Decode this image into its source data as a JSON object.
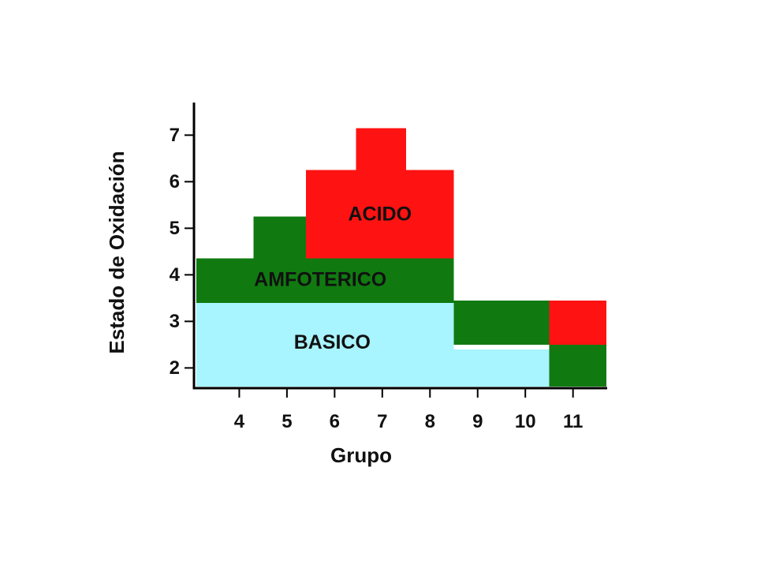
{
  "chart_data": {
    "type": "area",
    "title": "",
    "xlabel": "Grupo",
    "ylabel": "Estado de Oxidación",
    "x_ticks": [
      "4",
      "5",
      "6",
      "7",
      "8",
      "9",
      "10",
      "11"
    ],
    "y_ticks": [
      "2",
      "3",
      "4",
      "5",
      "6",
      "7"
    ],
    "xlim": [
      3.1,
      11.7
    ],
    "ylim": [
      1.6,
      7.7
    ],
    "regions": [
      {
        "name": "BASICO",
        "color": "#a8f4ff",
        "cells": [
          [
            3.1,
            8.5,
            2.4,
            3.4
          ],
          [
            3.1,
            10.5,
            1.6,
            2.4
          ]
        ]
      },
      {
        "name": "AMFOTERICO",
        "color": "#107a10",
        "cells": [
          [
            3.1,
            8.5,
            3.4,
            4.35
          ],
          [
            4.3,
            5.4,
            4.35,
            5.25
          ],
          [
            8.5,
            10.5,
            2.5,
            3.45
          ],
          [
            10.5,
            11.7,
            1.6,
            2.5
          ]
        ]
      },
      {
        "name": "ACIDO",
        "color": "#ff1212",
        "cells": [
          [
            5.4,
            8.5,
            4.35,
            6.25
          ],
          [
            6.45,
            7.5,
            6.25,
            7.15
          ],
          [
            10.5,
            11.7,
            2.5,
            3.45
          ]
        ]
      }
    ],
    "labels": [
      {
        "text": "ACIDO",
        "x": 6.95,
        "y": 5.3
      },
      {
        "text": "AMFOTERICO",
        "x": 5.7,
        "y": 3.9
      },
      {
        "text": "BASICO",
        "x": 5.95,
        "y": 2.55
      }
    ],
    "grid": false,
    "legend": "none"
  }
}
